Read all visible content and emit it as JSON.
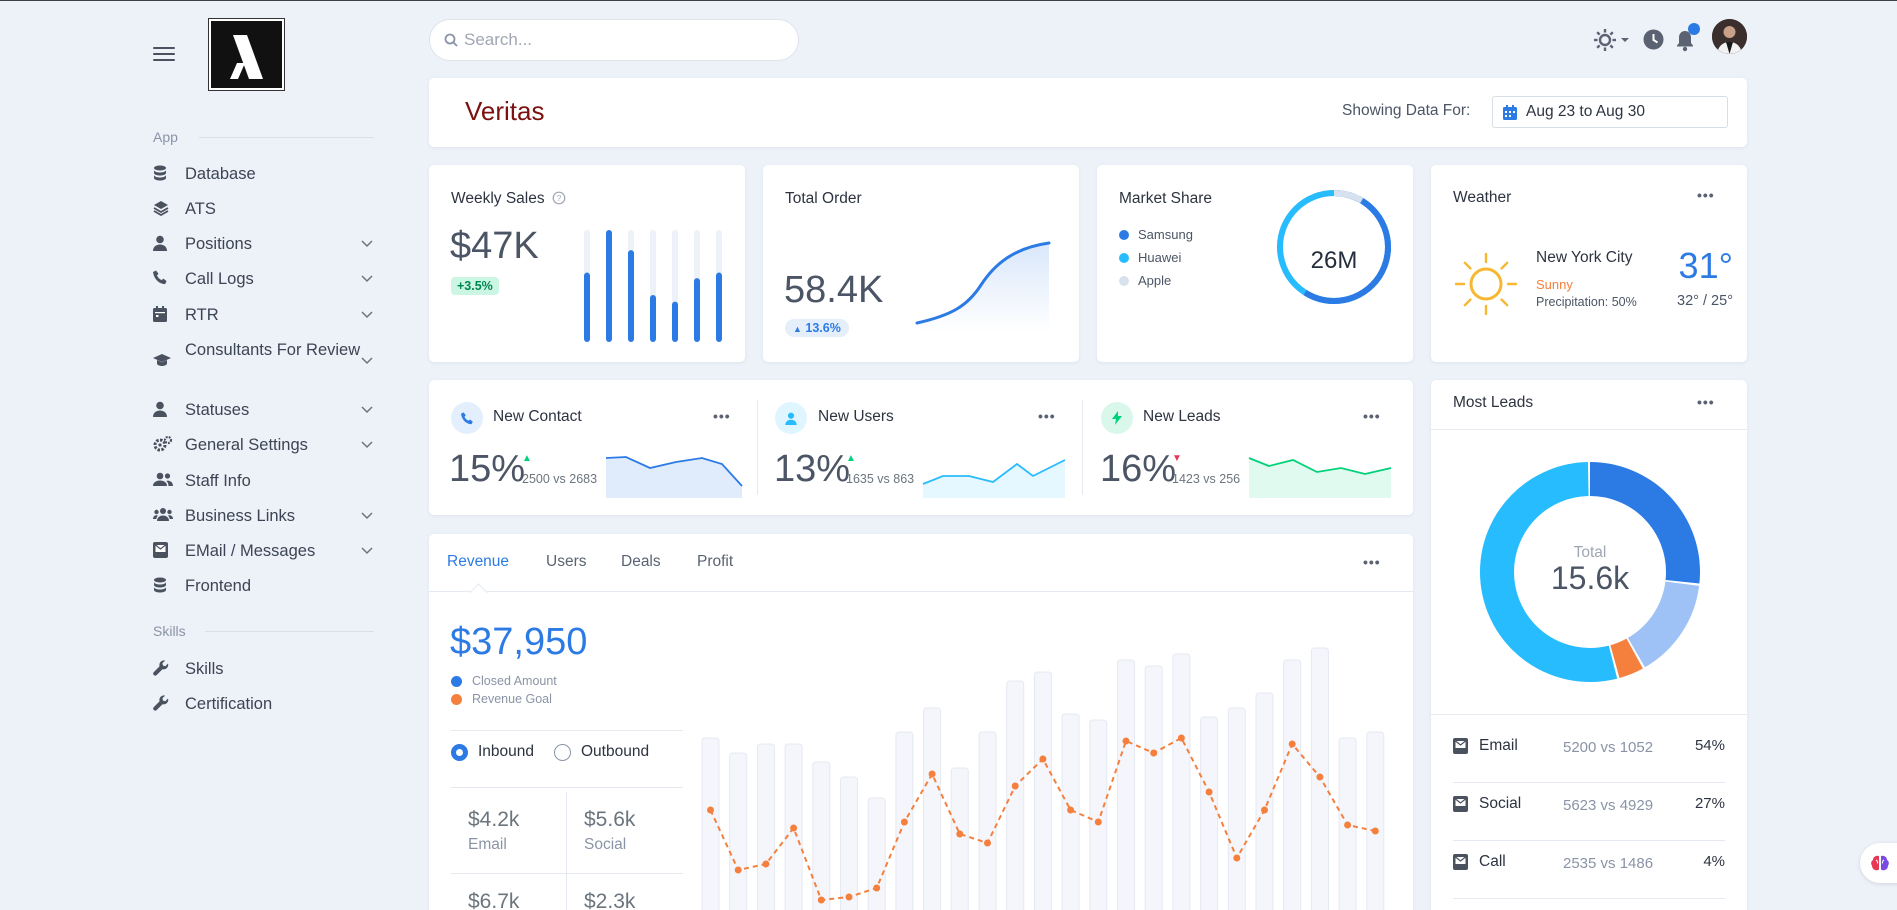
{
  "sidebar": {
    "sections": [
      {
        "title": "App"
      },
      {
        "title": "Skills"
      }
    ],
    "items": [
      {
        "label": "Database"
      },
      {
        "label": "ATS"
      },
      {
        "label": "Positions"
      },
      {
        "label": "Call Logs"
      },
      {
        "label": "RTR"
      },
      {
        "label": "Consultants For Review"
      },
      {
        "label": "Statuses"
      },
      {
        "label": "General Settings"
      },
      {
        "label": "Staff Info"
      },
      {
        "label": "Business Links"
      },
      {
        "label": "EMail / Messages"
      },
      {
        "label": "Frontend"
      },
      {
        "label": "Skills"
      },
      {
        "label": "Certification"
      }
    ]
  },
  "topbar": {
    "search_placeholder": "Search..."
  },
  "header": {
    "title": "Veritas",
    "showing_label": "Showing Data For:",
    "date_range": "Aug 23 to Aug 30",
    "title_color": "#7b1111"
  },
  "weekly_sales": {
    "title": "Weekly Sales",
    "value": "$47K",
    "badge": "+3.5%",
    "bars": [
      0.62,
      1.0,
      0.82,
      0.42,
      0.36,
      0.57,
      0.62
    ]
  },
  "total_order": {
    "title": "Total Order",
    "value": "58.4K",
    "badge": "13.6%"
  },
  "market_share": {
    "title": "Market Share",
    "center": "26M",
    "legend": [
      {
        "name": "Samsung",
        "color": "#2c7be5"
      },
      {
        "name": "Huawei",
        "color": "#27bcfd"
      },
      {
        "name": "Apple",
        "color": "#d8e2ef"
      }
    ]
  },
  "weather": {
    "title": "Weather",
    "city": "New York City",
    "condition": "Sunny",
    "precipitation": "Precipitation: 50%",
    "temp": "31°",
    "range": "32° / 25°"
  },
  "stats": [
    {
      "title": "New Contact",
      "value": "15%",
      "compare": "2500 vs 2683",
      "trend": "up"
    },
    {
      "title": "New Users",
      "value": "13%",
      "compare": "1635 vs 863",
      "trend": "up"
    },
    {
      "title": "New Leads",
      "value": "16%",
      "compare": "1423 vs 256",
      "trend": "down"
    }
  ],
  "revenue": {
    "tabs": [
      "Revenue",
      "Users",
      "Deals",
      "Profit"
    ],
    "active_tab": "Revenue",
    "amount": "$37,950",
    "legend": [
      {
        "name": "Closed Amount",
        "color": "#2c7be5"
      },
      {
        "name": "Revenue Goal",
        "color": "#f5803e"
      }
    ],
    "radios": [
      {
        "label": "Inbound",
        "checked": true
      },
      {
        "label": "Outbound",
        "checked": false
      }
    ],
    "mini_stats": [
      {
        "value": "$4.2k",
        "label": "Email"
      },
      {
        "value": "$5.6k",
        "label": "Social"
      },
      {
        "value": "$6.7k",
        "label": ""
      },
      {
        "value": "$2.3k",
        "label": ""
      }
    ]
  },
  "chart_data": {
    "type": "bar",
    "title": "",
    "xlabel": "",
    "ylabel": "",
    "series": [
      {
        "values": [
          0.62,
          0.57,
          0.6,
          0.6,
          0.54,
          0.49,
          0.42,
          0.64,
          0.72,
          0.52,
          0.64,
          0.81,
          0.84,
          0.7,
          0.68,
          0.88,
          0.86,
          0.9,
          0.69,
          0.72,
          0.77,
          0.88,
          0.92,
          0.62,
          0.64
        ]
      },
      {
        "values": [
          0.38,
          0.18,
          0.2,
          0.32,
          0.08,
          0.09,
          0.12,
          0.34,
          0.5,
          0.3,
          0.27,
          0.46,
          0.55,
          0.38,
          0.34,
          0.61,
          0.57,
          0.62,
          0.44,
          0.22,
          0.38,
          0.6,
          0.49,
          0.33,
          0.31
        ]
      }
    ]
  },
  "most_leads": {
    "title": "Most Leads",
    "total_label": "Total",
    "total_value": "15.6k",
    "donut": [
      {
        "value": 27,
        "color": "#2c7be5"
      },
      {
        "value": 15,
        "color": "#9ec2f5"
      },
      {
        "value": 4,
        "color": "#f5803e"
      },
      {
        "value": 54,
        "color": "#27bcfd"
      }
    ],
    "rows": [
      {
        "label": "Email",
        "compare": "5200 vs 1052",
        "pct": "54%"
      },
      {
        "label": "Social",
        "compare": "5623 vs 4929",
        "pct": "27%"
      },
      {
        "label": "Call",
        "compare": "2535 vs 1486",
        "pct": "4%"
      }
    ]
  }
}
